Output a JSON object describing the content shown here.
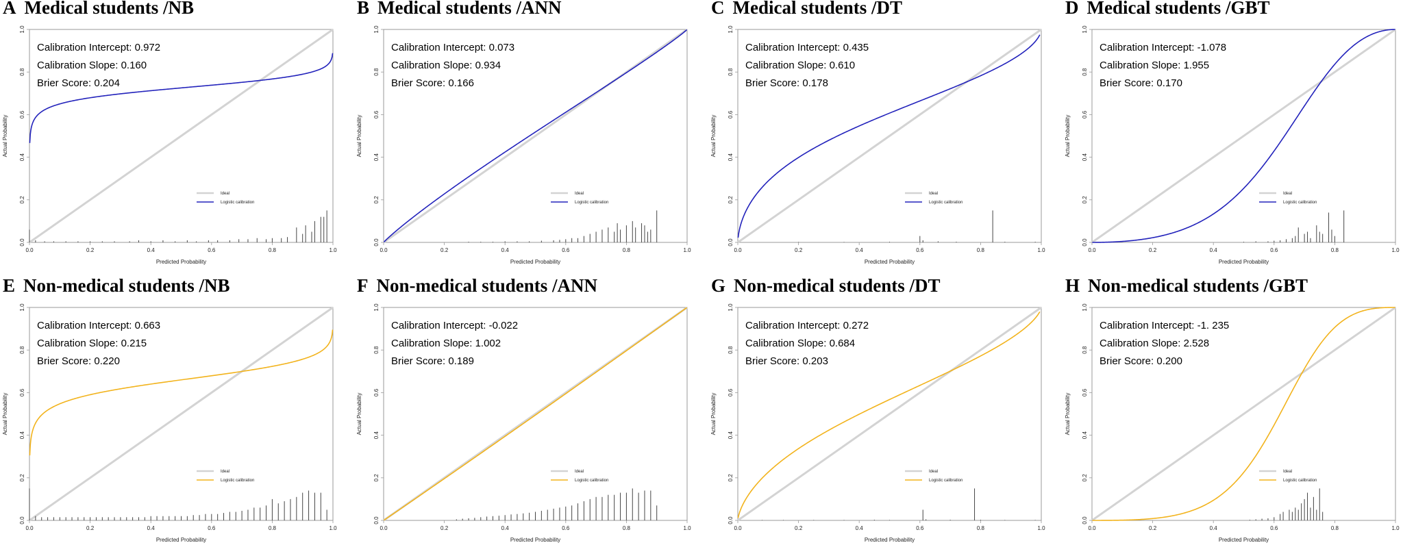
{
  "colors": {
    "model_blue": "#2222bb",
    "model_orange": "#f2b31c",
    "ideal": "#d3d3d3",
    "histogram": "#444444"
  },
  "axis_labels": {
    "x": "Predicted Probability",
    "y": "Actual Probability"
  },
  "ticks": [
    "0.0",
    "0.2",
    "0.4",
    "0.6",
    "0.8",
    "1.0"
  ],
  "legend": {
    "ideal": "Ideal",
    "model": "Logistic calibration"
  },
  "stat_labels": {
    "intercept": "Calibration Intercept:",
    "slope": "Calibration Slope:",
    "brier": "Brier Score:"
  },
  "chart_data": [
    {
      "letter": "A",
      "title": "Medical students /NB",
      "type": "line",
      "color": "blue",
      "intercept": 0.972,
      "intercept_text": "0.972",
      "slope": 0.16,
      "slope_text": "0.160",
      "brier_text": "0.204",
      "xlabel": "Predicted Probability",
      "ylabel": "Actual Probability",
      "xlim": [
        0,
        1
      ],
      "ylim": [
        0,
        1
      ],
      "curve_range": [
        0.001,
        0.999
      ],
      "hist": [
        [
          0,
          0.06
        ],
        [
          0.02,
          0.01
        ],
        [
          0.05,
          0.005
        ],
        [
          0.08,
          0.005
        ],
        [
          0.12,
          0.005
        ],
        [
          0.16,
          0.005
        ],
        [
          0.2,
          0.005
        ],
        [
          0.24,
          0.005
        ],
        [
          0.28,
          0.005
        ],
        [
          0.33,
          0.005
        ],
        [
          0.36,
          0.01
        ],
        [
          0.4,
          0.005
        ],
        [
          0.44,
          0.01
        ],
        [
          0.48,
          0.005
        ],
        [
          0.52,
          0.01
        ],
        [
          0.55,
          0.005
        ],
        [
          0.59,
          0.01
        ],
        [
          0.62,
          0.01
        ],
        [
          0.66,
          0.01
        ],
        [
          0.69,
          0.015
        ],
        [
          0.72,
          0.015
        ],
        [
          0.75,
          0.02
        ],
        [
          0.78,
          0.015
        ],
        [
          0.8,
          0.02
        ],
        [
          0.83,
          0.02
        ],
        [
          0.85,
          0.025
        ],
        [
          0.88,
          0.07
        ],
        [
          0.9,
          0.04
        ],
        [
          0.91,
          0.08
        ],
        [
          0.93,
          0.05
        ],
        [
          0.94,
          0.1
        ],
        [
          0.96,
          0.12
        ],
        [
          0.97,
          0.12
        ],
        [
          0.98,
          0.15
        ]
      ]
    },
    {
      "letter": "B",
      "title": "Medical students /ANN",
      "type": "line",
      "color": "blue",
      "intercept": 0.073,
      "intercept_text": "0.073",
      "slope": 0.934,
      "slope_text": "0.934",
      "brier_text": "0.166",
      "xlabel": "Predicted Probability",
      "ylabel": "Actual Probability",
      "xlim": [
        0,
        1
      ],
      "ylim": [
        0,
        1
      ],
      "curve_range": [
        0.001,
        0.999
      ],
      "hist": [
        [
          0.28,
          0.003
        ],
        [
          0.32,
          0.003
        ],
        [
          0.36,
          0.003
        ],
        [
          0.4,
          0.005
        ],
        [
          0.44,
          0.005
        ],
        [
          0.48,
          0.005
        ],
        [
          0.52,
          0.008
        ],
        [
          0.56,
          0.01
        ],
        [
          0.58,
          0.012
        ],
        [
          0.6,
          0.015
        ],
        [
          0.62,
          0.02
        ],
        [
          0.64,
          0.02
        ],
        [
          0.66,
          0.03
        ],
        [
          0.68,
          0.04
        ],
        [
          0.7,
          0.05
        ],
        [
          0.72,
          0.06
        ],
        [
          0.74,
          0.07
        ],
        [
          0.76,
          0.05
        ],
        [
          0.77,
          0.09
        ],
        [
          0.78,
          0.06
        ],
        [
          0.8,
          0.08
        ],
        [
          0.82,
          0.1
        ],
        [
          0.83,
          0.07
        ],
        [
          0.85,
          0.09
        ],
        [
          0.86,
          0.08
        ],
        [
          0.87,
          0.05
        ],
        [
          0.88,
          0.06
        ],
        [
          0.9,
          0.15
        ]
      ]
    },
    {
      "letter": "C",
      "title": "Medical students /DT",
      "type": "line",
      "color": "blue",
      "intercept": 0.435,
      "intercept_text": "0.435",
      "slope": 0.61,
      "slope_text": "0.610",
      "brier_text": "0.178",
      "xlabel": "Predicted Probability",
      "ylabel": "Actual Probability",
      "xlim": [
        0,
        1
      ],
      "ylim": [
        0,
        1
      ],
      "curve_range": [
        0.001,
        0.995
      ],
      "hist": [
        [
          0.2,
          0.002
        ],
        [
          0.35,
          0.002
        ],
        [
          0.5,
          0.003
        ],
        [
          0.6,
          0.03
        ],
        [
          0.61,
          0.01
        ],
        [
          0.66,
          0.005
        ],
        [
          0.72,
          0.003
        ],
        [
          0.84,
          0.15
        ],
        [
          0.88,
          0.003
        ],
        [
          0.98,
          0.003
        ]
      ]
    },
    {
      "letter": "D",
      "title": "Medical students /GBT",
      "type": "line",
      "color": "blue",
      "intercept": -1.078,
      "intercept_text": "-1.078",
      "slope": 1.955,
      "slope_text": "1.955",
      "brier_text": "0.170",
      "xlabel": "Predicted Probability",
      "ylabel": "Actual Probability",
      "xlim": [
        0,
        1
      ],
      "ylim": [
        0,
        1
      ],
      "curve_range": [
        0.001,
        0.999
      ],
      "hist": [
        [
          0.5,
          0.003
        ],
        [
          0.54,
          0.005
        ],
        [
          0.58,
          0.005
        ],
        [
          0.6,
          0.008
        ],
        [
          0.62,
          0.01
        ],
        [
          0.64,
          0.015
        ],
        [
          0.66,
          0.02
        ],
        [
          0.67,
          0.03
        ],
        [
          0.68,
          0.07
        ],
        [
          0.7,
          0.04
        ],
        [
          0.71,
          0.05
        ],
        [
          0.72,
          0.02
        ],
        [
          0.74,
          0.08
        ],
        [
          0.75,
          0.05
        ],
        [
          0.76,
          0.04
        ],
        [
          0.78,
          0.14
        ],
        [
          0.79,
          0.06
        ],
        [
          0.8,
          0.03
        ],
        [
          0.83,
          0.15
        ]
      ]
    },
    {
      "letter": "E",
      "title": "Non-medical students /NB",
      "type": "line",
      "color": "orange",
      "intercept": 0.663,
      "intercept_text": "0.663",
      "slope": 0.215,
      "slope_text": "0.215",
      "brier_text": "0.220",
      "xlabel": "Predicted Probability",
      "ylabel": "Actual Probability",
      "xlim": [
        0,
        1
      ],
      "ylim": [
        0,
        1
      ],
      "curve_range": [
        0.001,
        0.999
      ],
      "hist": [
        [
          0,
          0.15
        ],
        [
          0.02,
          0.02
        ],
        [
          0.04,
          0.015
        ],
        [
          0.06,
          0.015
        ],
        [
          0.08,
          0.015
        ],
        [
          0.1,
          0.015
        ],
        [
          0.12,
          0.015
        ],
        [
          0.14,
          0.015
        ],
        [
          0.16,
          0.015
        ],
        [
          0.18,
          0.015
        ],
        [
          0.2,
          0.015
        ],
        [
          0.22,
          0.015
        ],
        [
          0.24,
          0.015
        ],
        [
          0.26,
          0.015
        ],
        [
          0.28,
          0.015
        ],
        [
          0.3,
          0.015
        ],
        [
          0.32,
          0.015
        ],
        [
          0.34,
          0.015
        ],
        [
          0.36,
          0.015
        ],
        [
          0.38,
          0.015
        ],
        [
          0.4,
          0.02
        ],
        [
          0.42,
          0.02
        ],
        [
          0.44,
          0.02
        ],
        [
          0.46,
          0.02
        ],
        [
          0.48,
          0.02
        ],
        [
          0.5,
          0.02
        ],
        [
          0.52,
          0.02
        ],
        [
          0.54,
          0.025
        ],
        [
          0.56,
          0.025
        ],
        [
          0.58,
          0.03
        ],
        [
          0.6,
          0.03
        ],
        [
          0.62,
          0.03
        ],
        [
          0.64,
          0.035
        ],
        [
          0.66,
          0.04
        ],
        [
          0.68,
          0.04
        ],
        [
          0.7,
          0.045
        ],
        [
          0.72,
          0.05
        ],
        [
          0.74,
          0.06
        ],
        [
          0.76,
          0.06
        ],
        [
          0.78,
          0.07
        ],
        [
          0.8,
          0.1
        ],
        [
          0.82,
          0.08
        ],
        [
          0.84,
          0.09
        ],
        [
          0.86,
          0.1
        ],
        [
          0.88,
          0.11
        ],
        [
          0.9,
          0.13
        ],
        [
          0.92,
          0.14
        ],
        [
          0.94,
          0.13
        ],
        [
          0.96,
          0.13
        ],
        [
          0.98,
          0.05
        ]
      ]
    },
    {
      "letter": "F",
      "title": "Non-medical students /ANN",
      "type": "line",
      "color": "orange",
      "intercept": -0.022,
      "intercept_text": "-0.022",
      "slope": 1.002,
      "slope_text": "1.002",
      "brier_text": "0.189",
      "xlabel": "Predicted Probability",
      "ylabel": "Actual Probability",
      "xlim": [
        0,
        1
      ],
      "ylim": [
        0,
        1
      ],
      "curve_range": [
        0.001,
        0.999
      ],
      "hist": [
        [
          0.24,
          0.005
        ],
        [
          0.26,
          0.008
        ],
        [
          0.28,
          0.01
        ],
        [
          0.3,
          0.012
        ],
        [
          0.32,
          0.015
        ],
        [
          0.34,
          0.018
        ],
        [
          0.36,
          0.02
        ],
        [
          0.38,
          0.022
        ],
        [
          0.4,
          0.025
        ],
        [
          0.42,
          0.028
        ],
        [
          0.44,
          0.03
        ],
        [
          0.46,
          0.033
        ],
        [
          0.48,
          0.036
        ],
        [
          0.5,
          0.04
        ],
        [
          0.52,
          0.045
        ],
        [
          0.54,
          0.05
        ],
        [
          0.56,
          0.055
        ],
        [
          0.58,
          0.06
        ],
        [
          0.6,
          0.065
        ],
        [
          0.62,
          0.07
        ],
        [
          0.64,
          0.08
        ],
        [
          0.66,
          0.09
        ],
        [
          0.68,
          0.1
        ],
        [
          0.7,
          0.11
        ],
        [
          0.72,
          0.11
        ],
        [
          0.74,
          0.12
        ],
        [
          0.76,
          0.12
        ],
        [
          0.78,
          0.13
        ],
        [
          0.8,
          0.13
        ],
        [
          0.82,
          0.15
        ],
        [
          0.84,
          0.13
        ],
        [
          0.86,
          0.14
        ],
        [
          0.88,
          0.14
        ],
        [
          0.9,
          0.07
        ]
      ]
    },
    {
      "letter": "G",
      "title": "Non-medical students /DT",
      "type": "line",
      "color": "orange",
      "intercept": 0.272,
      "intercept_text": "0.272",
      "slope": 0.684,
      "slope_text": "0.684",
      "brier_text": "0.203",
      "xlabel": "Predicted Probability",
      "ylabel": "Actual Probability",
      "xlim": [
        0,
        1
      ],
      "ylim": [
        0,
        1
      ],
      "curve_range": [
        0.001,
        0.995
      ],
      "hist": [
        [
          0.08,
          0.002
        ],
        [
          0.15,
          0.002
        ],
        [
          0.25,
          0.002
        ],
        [
          0.35,
          0.002
        ],
        [
          0.45,
          0.003
        ],
        [
          0.5,
          0.002
        ],
        [
          0.61,
          0.05
        ],
        [
          0.62,
          0.005
        ],
        [
          0.7,
          0.003
        ],
        [
          0.78,
          0.15
        ],
        [
          0.8,
          0.003
        ],
        [
          0.88,
          0.002
        ],
        [
          0.98,
          0.002
        ]
      ]
    },
    {
      "letter": "H",
      "title": "Non-medical students /GBT",
      "type": "line",
      "color": "orange",
      "intercept": -1.235,
      "intercept_text": "-1. 235",
      "slope": 2.528,
      "slope_text": "2.528",
      "brier_text": "0.200",
      "xlabel": "Predicted Probability",
      "ylabel": "Actual Probability",
      "xlim": [
        0,
        1
      ],
      "ylim": [
        0,
        1
      ],
      "curve_range": [
        0.001,
        0.999
      ],
      "hist": [
        [
          0.52,
          0.003
        ],
        [
          0.54,
          0.005
        ],
        [
          0.56,
          0.008
        ],
        [
          0.58,
          0.01
        ],
        [
          0.6,
          0.015
        ],
        [
          0.62,
          0.03
        ],
        [
          0.63,
          0.04
        ],
        [
          0.65,
          0.05
        ],
        [
          0.66,
          0.04
        ],
        [
          0.67,
          0.06
        ],
        [
          0.68,
          0.05
        ],
        [
          0.69,
          0.08
        ],
        [
          0.7,
          0.1
        ],
        [
          0.71,
          0.13
        ],
        [
          0.72,
          0.06
        ],
        [
          0.73,
          0.11
        ],
        [
          0.74,
          0.05
        ],
        [
          0.75,
          0.15
        ],
        [
          0.76,
          0.04
        ]
      ]
    }
  ]
}
